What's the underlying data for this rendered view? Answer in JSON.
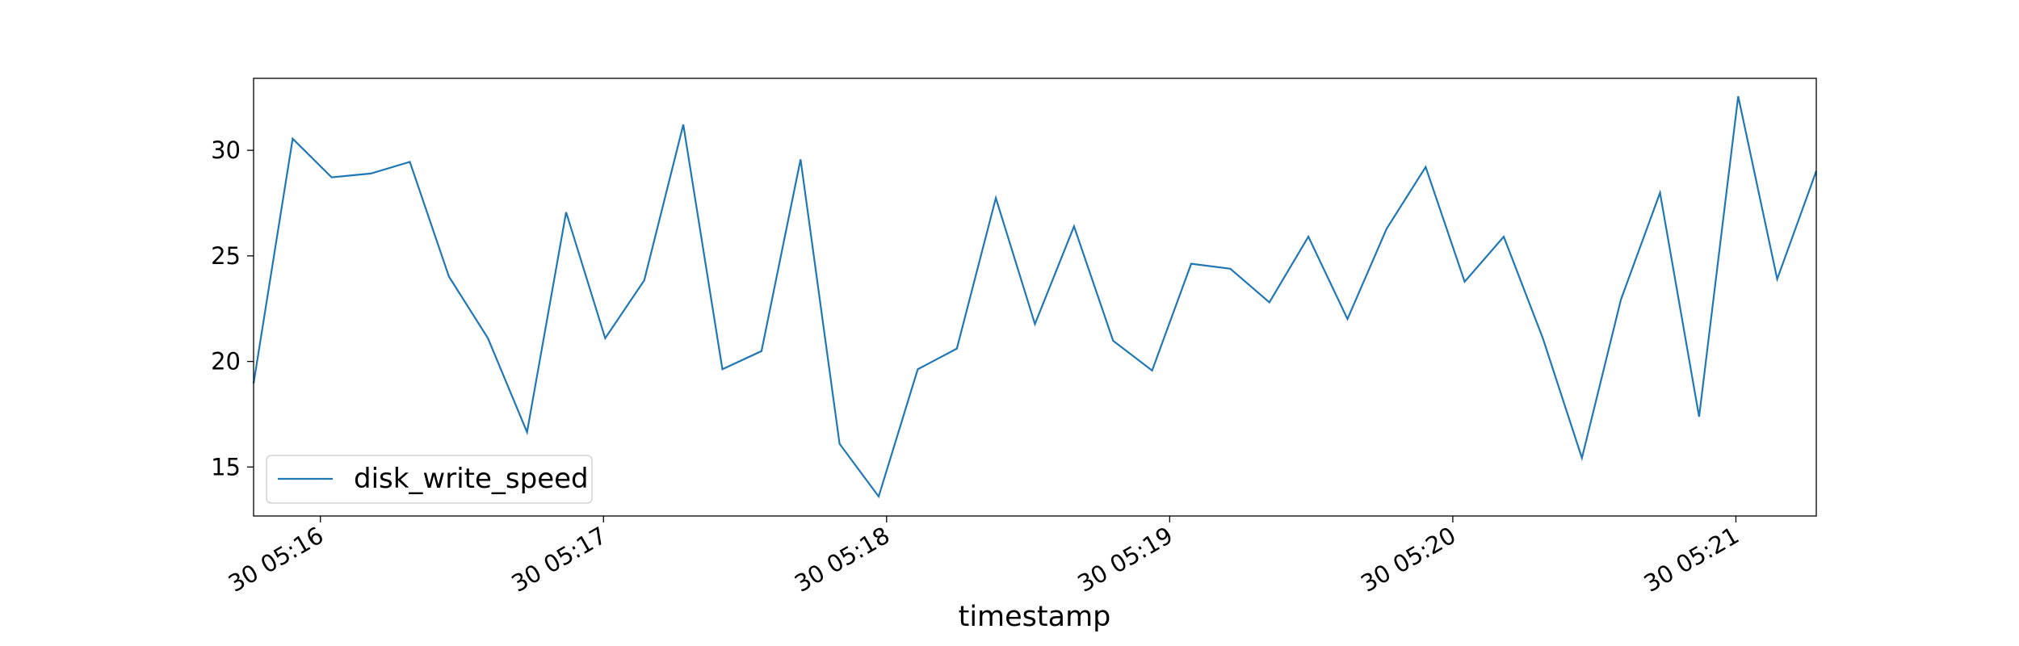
{
  "chart_data": {
    "type": "line",
    "x_label": "timestamp",
    "x": [
      15.764,
      15.902,
      16.04,
      16.178,
      16.316,
      16.454,
      16.592,
      16.73,
      16.868,
      17.006,
      17.144,
      17.282,
      17.42,
      17.558,
      17.696,
      17.834,
      17.972,
      18.11,
      18.248,
      18.386,
      18.524,
      18.662,
      18.8,
      18.938,
      19.076,
      19.214,
      19.352,
      19.49,
      19.628,
      19.766,
      19.904,
      20.042,
      20.18,
      20.318,
      20.456,
      20.594,
      20.732,
      20.87,
      21.008,
      21.146,
      21.284
    ],
    "series": [
      {
        "name": "disk_write_speed",
        "color": "#1f77b4",
        "values": [
          18.96,
          30.55,
          28.72,
          28.9,
          29.45,
          24.02,
          21.1,
          16.65,
          27.07,
          21.1,
          23.84,
          31.22,
          19.63,
          20.49,
          29.57,
          16.1,
          13.6,
          19.63,
          20.61,
          27.74,
          21.77,
          26.4,
          20.98,
          19.57,
          24.63,
          24.39,
          22.8,
          25.91,
          22.01,
          26.28,
          29.21,
          23.78,
          25.91,
          21.1,
          15.43,
          22.93,
          27.99,
          17.38,
          32.56,
          23.9,
          29.02
        ]
      }
    ],
    "xlim": [
      15.764,
      21.284
    ],
    "xticks": [
      {
        "value": 16,
        "label": "30 05:16"
      },
      {
        "value": 17,
        "label": "30 05:17"
      },
      {
        "value": 18,
        "label": "30 05:18"
      },
      {
        "value": 19,
        "label": "30 05:19"
      },
      {
        "value": 20,
        "label": "30 05:20"
      },
      {
        "value": 21,
        "label": "30 05:21"
      }
    ],
    "ylim": [
      12.68,
      33.41
    ],
    "yticks": [
      15,
      20,
      25,
      30
    ],
    "grid": false,
    "legend": "lower left"
  }
}
